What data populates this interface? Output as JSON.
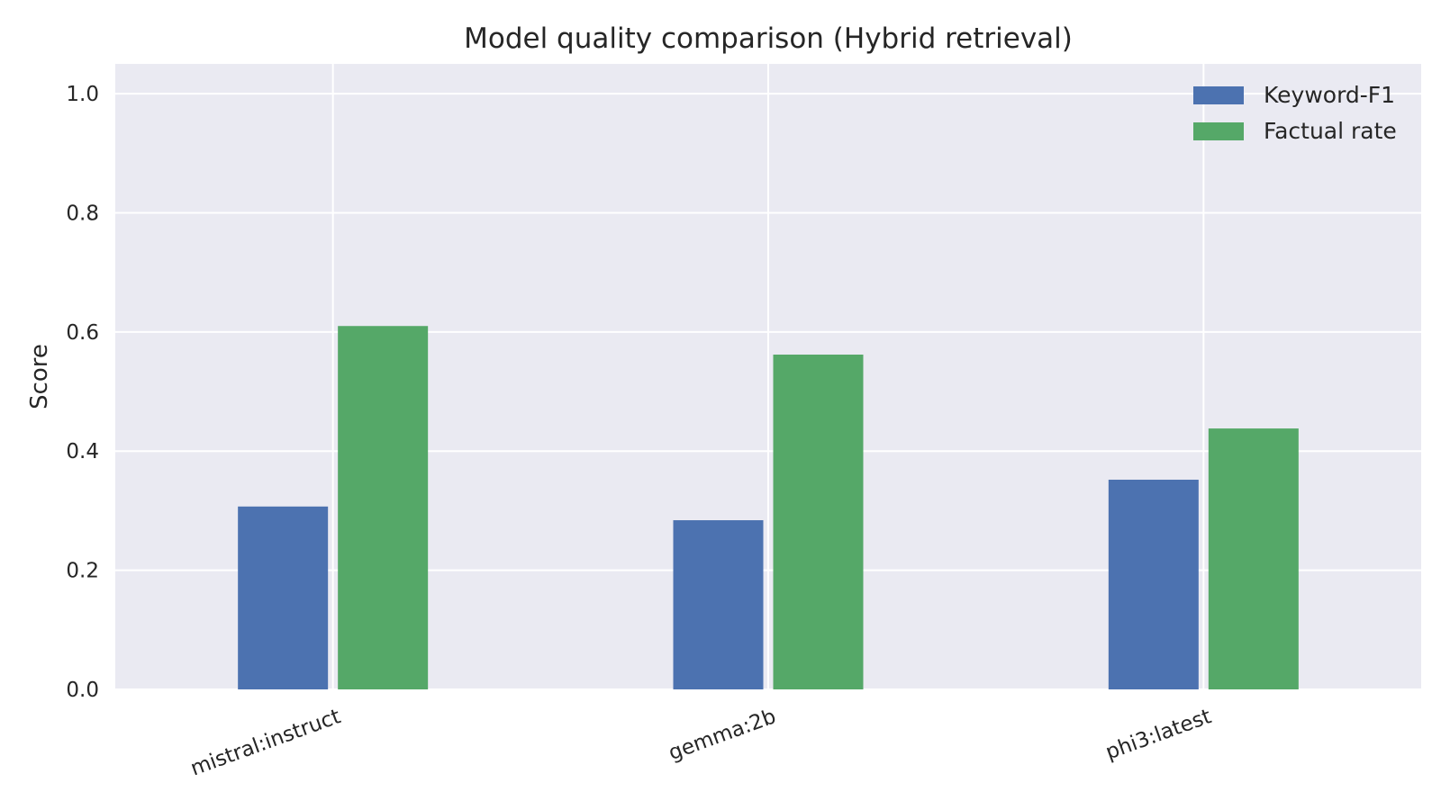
{
  "chart_data": {
    "type": "bar",
    "title": "Model quality comparison (Hybrid retrieval)",
    "xlabel": "",
    "ylabel": "Score",
    "categories": [
      "mistral:instruct",
      "gemma:2b",
      "phi3:latest"
    ],
    "series": [
      {
        "name": "Keyword-F1",
        "values": [
          0.307,
          0.284,
          0.352
        ],
        "color": "#4c72b0"
      },
      {
        "name": "Factual rate",
        "values": [
          0.61,
          0.562,
          0.438
        ],
        "color": "#55a868"
      }
    ],
    "ylim": [
      0,
      1.05
    ],
    "yticks": [
      "0.0",
      "0.2",
      "0.4",
      "0.6",
      "0.8",
      "1.0"
    ],
    "ytick_values": [
      0,
      0.2,
      0.4,
      0.6,
      0.8,
      1.0
    ],
    "grid": true,
    "legend": "top-right",
    "plot_background": "#eaeaf2"
  }
}
